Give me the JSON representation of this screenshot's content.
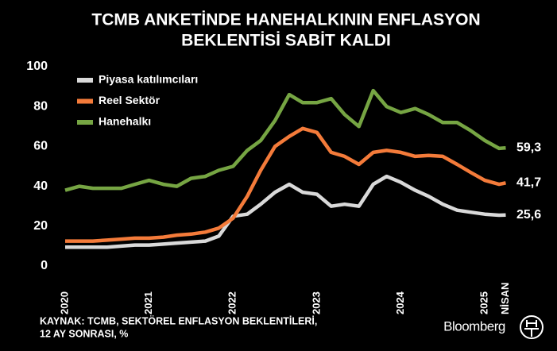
{
  "chart_data": {
    "type": "line",
    "title": [
      "TCMB ANKETİNDE HANEHALKININ ENFLASYON",
      "BEKLENTİSİ SABİT KALDI"
    ],
    "source": [
      "KAYNAK: TCMB, SEKTÖREL ENFLASYON BEKLENTİLERİ,",
      "12 AY SONRASI, %"
    ],
    "brand": "Bloomberg",
    "x": [
      2020,
      2020.17,
      2020.33,
      2020.5,
      2020.67,
      2020.83,
      2021,
      2021.17,
      2021.33,
      2021.5,
      2021.67,
      2021.83,
      2022,
      2022.17,
      2022.33,
      2022.5,
      2022.67,
      2022.83,
      2023,
      2023.17,
      2023.33,
      2023.5,
      2023.67,
      2023.83,
      2024,
      2024.17,
      2024.33,
      2024.5,
      2024.67,
      2024.83,
      2025,
      2025.17,
      2025.25
    ],
    "xlim": [
      2020,
      2025.33
    ],
    "xticks": [
      2020,
      2021,
      2022,
      2023,
      2024,
      2025,
      {
        "value": 2025.25,
        "label": "NİSAN"
      }
    ],
    "ylim": [
      0,
      100
    ],
    "yticks": [
      0,
      20,
      40,
      60,
      80,
      100
    ],
    "grid": false,
    "legend": "top-left",
    "series": [
      {
        "name": "Piyasa katılımcıları",
        "color": "#d9d9d9",
        "values": [
          9.5,
          9.5,
          9.5,
          9.5,
          10,
          10.5,
          10.5,
          11,
          11.5,
          12,
          12.5,
          15,
          25,
          26,
          31,
          37,
          41,
          37,
          36,
          30,
          31,
          30,
          41,
          45,
          42,
          38,
          35,
          31,
          28,
          27,
          26,
          25.5,
          25.6
        ],
        "value_labels": [
          null,
          null,
          null,
          null,
          null,
          null,
          null,
          null,
          null,
          null,
          null,
          null,
          null,
          null,
          null,
          null,
          null,
          null,
          null,
          null,
          null,
          null,
          null,
          null,
          null,
          null,
          null,
          null,
          null,
          null,
          null,
          null,
          "25,6"
        ]
      },
      {
        "name": "Reel Sektör",
        "color": "#f47b3a",
        "values": [
          12.5,
          12.5,
          12.5,
          13,
          13.5,
          14,
          14,
          14.5,
          15.5,
          16,
          17,
          19,
          24,
          35,
          48,
          60,
          65,
          69,
          67,
          57,
          55,
          51,
          57,
          58,
          57,
          55,
          55.5,
          55,
          51,
          47,
          43,
          41,
          41.7
        ],
        "value_labels": [
          null,
          null,
          null,
          null,
          null,
          null,
          null,
          null,
          null,
          null,
          null,
          null,
          null,
          null,
          null,
          null,
          null,
          null,
          null,
          null,
          null,
          null,
          null,
          null,
          null,
          null,
          null,
          null,
          null,
          null,
          null,
          null,
          "41,7"
        ]
      },
      {
        "name": "Hanehalkı",
        "color": "#76a543",
        "values": [
          38,
          40,
          39,
          39,
          39,
          41,
          43,
          41,
          40,
          44,
          45,
          48,
          50,
          58,
          63,
          73,
          86,
          82,
          82,
          84,
          76,
          70,
          88,
          80,
          77,
          79,
          76,
          72,
          72,
          68,
          63,
          59,
          59.3
        ],
        "value_labels": [
          null,
          null,
          null,
          null,
          null,
          null,
          null,
          null,
          null,
          null,
          null,
          null,
          null,
          null,
          null,
          null,
          null,
          null,
          null,
          null,
          null,
          null,
          null,
          null,
          null,
          null,
          null,
          null,
          null,
          null,
          null,
          null,
          "59,3"
        ]
      }
    ]
  }
}
